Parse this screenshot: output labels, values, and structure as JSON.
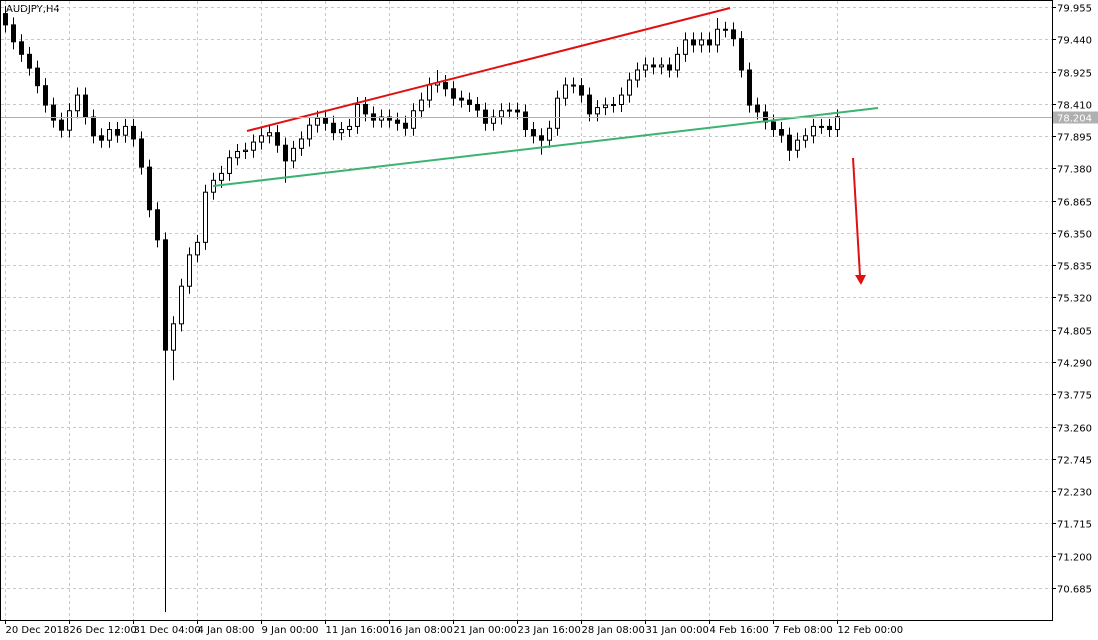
{
  "chart_data": {
    "type": "candlestick",
    "title": "AUDJPY,H4",
    "categories": [
      "20 Dec 2018",
      null,
      null,
      null,
      null,
      null,
      null,
      null,
      "26 Dec 12:00",
      null,
      null,
      null,
      null,
      null,
      null,
      null,
      "31 Dec 04:00",
      null,
      null,
      null,
      null,
      null,
      null,
      null,
      "4 Jan 08:00",
      null,
      null,
      null,
      null,
      null,
      null,
      null,
      "9 Jan 00:00",
      null,
      null,
      null,
      null,
      null,
      null,
      null,
      "11 Jan 16:00",
      null,
      null,
      null,
      null,
      null,
      null,
      null,
      "16 Jan 08:00",
      null,
      null,
      null,
      null,
      null,
      null,
      null,
      "21 Jan 00:00",
      null,
      null,
      null,
      null,
      null,
      null,
      null,
      "23 Jan 16:00",
      null,
      null,
      null,
      null,
      null,
      null,
      null,
      "28 Jan 08:00",
      null,
      null,
      null,
      null,
      null,
      null,
      null,
      "31 Jan 00:00",
      null,
      null,
      null,
      null,
      null,
      null,
      null,
      "4 Feb 16:00",
      null,
      null,
      null,
      null,
      null,
      null,
      null,
      "7 Feb 08:00",
      null,
      null,
      null,
      null,
      null,
      null,
      null,
      "12 Feb 00:00"
    ],
    "ohlc": [
      [
        79.85,
        79.97,
        79.55,
        79.67
      ],
      [
        79.67,
        79.79,
        79.28,
        79.4
      ],
      [
        79.4,
        79.52,
        79.08,
        79.2
      ],
      [
        79.2,
        79.32,
        78.86,
        78.98
      ],
      [
        78.98,
        79.1,
        78.58,
        78.7
      ],
      [
        78.7,
        78.82,
        78.27,
        78.39
      ],
      [
        78.39,
        78.51,
        78.03,
        78.15
      ],
      [
        78.15,
        78.27,
        77.87,
        77.99
      ],
      [
        77.99,
        78.42,
        77.87,
        78.3
      ],
      [
        78.3,
        78.67,
        78.18,
        78.55
      ],
      [
        78.55,
        78.67,
        78.08,
        78.2
      ],
      [
        78.2,
        78.32,
        77.78,
        77.9
      ],
      [
        77.9,
        78.02,
        77.71,
        77.83
      ],
      [
        77.83,
        78.12,
        77.71,
        78.0
      ],
      [
        78.0,
        78.12,
        77.79,
        77.91
      ],
      [
        77.91,
        78.17,
        77.79,
        78.05
      ],
      [
        78.05,
        78.17,
        77.73,
        77.85
      ],
      [
        77.85,
        77.97,
        77.28,
        77.4
      ],
      [
        77.4,
        77.52,
        76.6,
        76.72
      ],
      [
        76.72,
        76.84,
        76.12,
        76.24
      ],
      [
        76.24,
        76.36,
        70.3,
        74.48
      ],
      [
        74.48,
        75.02,
        74.0,
        74.9
      ],
      [
        74.9,
        75.62,
        74.78,
        75.5
      ],
      [
        75.5,
        76.12,
        75.38,
        76.0
      ],
      [
        76.0,
        76.32,
        75.88,
        76.2
      ],
      [
        76.2,
        77.12,
        76.08,
        77.0
      ],
      [
        77.0,
        77.31,
        76.88,
        77.19
      ],
      [
        77.19,
        77.42,
        77.07,
        77.3
      ],
      [
        77.3,
        77.67,
        77.18,
        77.55
      ],
      [
        77.55,
        77.77,
        77.43,
        77.65
      ],
      [
        77.65,
        77.79,
        77.53,
        77.67
      ],
      [
        77.67,
        77.92,
        77.55,
        77.8
      ],
      [
        77.8,
        78.02,
        77.68,
        77.9
      ],
      [
        77.9,
        78.07,
        77.78,
        77.95
      ],
      [
        77.95,
        78.07,
        77.63,
        77.75
      ],
      [
        77.75,
        77.87,
        77.15,
        77.5
      ],
      [
        77.5,
        77.82,
        77.38,
        77.7
      ],
      [
        77.7,
        77.97,
        77.58,
        77.85
      ],
      [
        77.85,
        78.19,
        77.73,
        78.07
      ],
      [
        78.07,
        78.3,
        77.95,
        78.18
      ],
      [
        78.18,
        78.3,
        77.98,
        78.1
      ],
      [
        78.1,
        78.22,
        77.83,
        77.95
      ],
      [
        77.95,
        78.12,
        77.83,
        78.0
      ],
      [
        78.0,
        78.17,
        77.88,
        78.05
      ],
      [
        78.05,
        78.52,
        77.93,
        78.4
      ],
      [
        78.4,
        78.52,
        78.13,
        78.25
      ],
      [
        78.25,
        78.37,
        78.03,
        78.15
      ],
      [
        78.15,
        78.32,
        78.03,
        78.2
      ],
      [
        78.2,
        78.32,
        78.03,
        78.15
      ],
      [
        78.15,
        78.27,
        77.98,
        78.1
      ],
      [
        78.1,
        78.22,
        77.9,
        78.02
      ],
      [
        78.02,
        78.42,
        77.9,
        78.3
      ],
      [
        78.3,
        78.59,
        78.18,
        78.47
      ],
      [
        78.47,
        78.83,
        78.35,
        78.71
      ],
      [
        78.71,
        78.95,
        78.59,
        78.75
      ],
      [
        78.75,
        78.87,
        78.53,
        78.65
      ],
      [
        78.65,
        78.77,
        78.38,
        78.5
      ],
      [
        78.5,
        78.62,
        78.35,
        78.47
      ],
      [
        78.47,
        78.59,
        78.28,
        78.4
      ],
      [
        78.4,
        78.52,
        78.19,
        78.31
      ],
      [
        78.31,
        78.43,
        77.98,
        78.1
      ],
      [
        78.1,
        78.32,
        77.98,
        78.2
      ],
      [
        78.2,
        78.42,
        78.08,
        78.3
      ],
      [
        78.3,
        78.43,
        78.18,
        78.31
      ],
      [
        78.31,
        78.43,
        78.16,
        78.28
      ],
      [
        78.28,
        78.4,
        77.88,
        78.0
      ],
      [
        78.0,
        78.12,
        77.78,
        77.9
      ],
      [
        77.9,
        78.02,
        77.6,
        77.83
      ],
      [
        77.83,
        78.14,
        77.71,
        78.02
      ],
      [
        78.02,
        78.62,
        77.9,
        78.5
      ],
      [
        78.5,
        78.83,
        78.38,
        78.71
      ],
      [
        78.71,
        78.83,
        78.58,
        78.7
      ],
      [
        78.7,
        78.82,
        78.43,
        78.55
      ],
      [
        78.55,
        78.67,
        78.13,
        78.25
      ],
      [
        78.25,
        78.47,
        78.13,
        78.35
      ],
      [
        78.35,
        78.51,
        78.23,
        78.39
      ],
      [
        78.39,
        78.52,
        78.27,
        78.4
      ],
      [
        78.4,
        78.67,
        78.28,
        78.55
      ],
      [
        78.55,
        78.91,
        78.43,
        78.79
      ],
      [
        78.79,
        79.07,
        78.67,
        78.95
      ],
      [
        78.95,
        79.15,
        78.83,
        79.03
      ],
      [
        79.03,
        79.15,
        78.88,
        79.0
      ],
      [
        79.0,
        79.15,
        78.88,
        79.03
      ],
      [
        79.03,
        79.15,
        78.83,
        78.95
      ],
      [
        78.95,
        79.32,
        78.83,
        79.2
      ],
      [
        79.2,
        79.55,
        79.08,
        79.43
      ],
      [
        79.43,
        79.55,
        79.23,
        79.35
      ],
      [
        79.35,
        79.55,
        79.23,
        79.43
      ],
      [
        79.43,
        79.55,
        79.23,
        79.35
      ],
      [
        79.35,
        79.78,
        79.23,
        79.6
      ],
      [
        79.6,
        79.72,
        79.47,
        79.59
      ],
      [
        79.59,
        79.71,
        79.33,
        79.45
      ],
      [
        79.45,
        79.57,
        78.83,
        78.95
      ],
      [
        78.95,
        79.07,
        78.27,
        78.39
      ],
      [
        78.39,
        78.51,
        78.16,
        78.28
      ],
      [
        78.28,
        78.4,
        78.0,
        78.12
      ],
      [
        78.12,
        78.24,
        77.88,
        78.0
      ],
      [
        78.0,
        78.12,
        77.79,
        77.91
      ],
      [
        77.91,
        78.03,
        77.5,
        77.67
      ],
      [
        77.67,
        77.95,
        77.55,
        77.83
      ],
      [
        77.83,
        78.02,
        77.71,
        77.9
      ],
      [
        77.9,
        78.17,
        77.78,
        78.05
      ],
      [
        78.05,
        78.17,
        77.93,
        78.05
      ],
      [
        78.05,
        78.17,
        77.88,
        78.0
      ],
      [
        78.0,
        78.32,
        77.88,
        78.204
      ]
    ],
    "current_price": 78.204,
    "ylim": [
      70.174,
      80.067
    ],
    "yticks": [
      79.955,
      {
        "value": 79.44,
        "label": "79.440"
      },
      78.925,
      {
        "value": 78.41,
        "label": "78.410"
      },
      77.895,
      {
        "value": 77.38,
        "label": "77.380"
      },
      76.865,
      {
        "value": 76.35,
        "label": "76.350"
      },
      75.835,
      {
        "value": 75.32,
        "label": "75.320"
      },
      74.805,
      {
        "value": 74.29,
        "label": "74.290"
      },
      73.775,
      {
        "value": 73.26,
        "label": "73.260"
      },
      72.745,
      {
        "value": 72.23,
        "label": "72.230"
      },
      71.715,
      {
        "value": 71.2,
        "label": "71.200"
      },
      70.685
    ],
    "grid": true,
    "up_color": "#ffffff",
    "down_color": "#000000",
    "outline_color": "#000000"
  }
}
